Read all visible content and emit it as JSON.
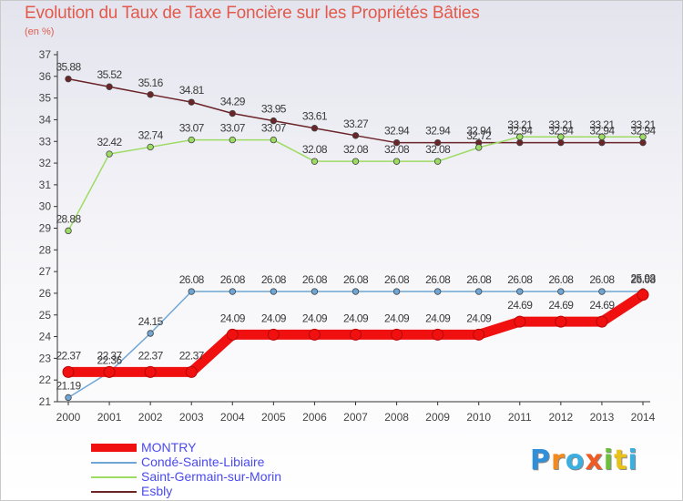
{
  "chart_data": {
    "type": "line",
    "title": "Evolution du Taux de Taxe Foncière sur les Propriétés Bâties",
    "unit_label": "(en %)",
    "xlabel": "",
    "ylabel": "",
    "ylim": [
      21,
      37
    ],
    "y_ticks": [
      21,
      22,
      23,
      24,
      25,
      26,
      27,
      28,
      29,
      30,
      31,
      32,
      33,
      34,
      35,
      36,
      37
    ],
    "x": [
      "2000",
      "2001",
      "2002",
      "2003",
      "2004",
      "2005",
      "2006",
      "2007",
      "2008",
      "2009",
      "2010",
      "2011",
      "2012",
      "2013",
      "2014"
    ],
    "grid": false,
    "series": [
      {
        "name": "Esbly",
        "color": "#6b2428",
        "values": [
          35.88,
          35.52,
          35.16,
          34.81,
          34.29,
          33.95,
          33.61,
          33.27,
          32.94,
          32.94,
          32.94,
          32.94,
          32.94,
          32.94,
          32.94
        ],
        "labels": [
          "35.88",
          "35.52",
          "35.16",
          "34.81",
          "34.29",
          "33.95",
          "33.61",
          "33.27",
          "32.94",
          "32.94",
          "32.94",
          "32.94",
          "32.94",
          "32.94",
          "32.94"
        ]
      },
      {
        "name": "Saint-Germain-sur-Morin",
        "color": "#9ddc62",
        "values": [
          28.88,
          32.42,
          32.74,
          33.07,
          33.07,
          33.07,
          32.08,
          32.08,
          32.08,
          32.08,
          32.72,
          33.21,
          33.21,
          33.21,
          33.21
        ],
        "labels": [
          "28.88",
          "32.42",
          "32.74",
          "33.07",
          "33.07",
          "33.07",
          "32.08",
          "32.08",
          "32.08",
          "32.08",
          "32.72",
          "33.21",
          "33.21",
          "33.21",
          "33.21"
        ]
      },
      {
        "name": "Condé-Sainte-Libiaire",
        "color": "#6fa6d6",
        "values": [
          21.19,
          22.36,
          24.15,
          26.08,
          26.08,
          26.08,
          26.08,
          26.08,
          26.08,
          26.08,
          26.08,
          26.08,
          26.08,
          26.08,
          26.08
        ],
        "labels": [
          "21.19",
          "22.36",
          "24.15",
          "26.08",
          "26.08",
          "26.08",
          "26.08",
          "26.08",
          "26.08",
          "26.08",
          "26.08",
          "26.08",
          "26.08",
          "26.08",
          "26.08"
        ]
      },
      {
        "name": "MONTRY",
        "color": "#f01010",
        "values": [
          22.37,
          22.37,
          22.37,
          22.37,
          24.09,
          24.09,
          24.09,
          24.09,
          24.09,
          24.09,
          24.09,
          24.69,
          24.69,
          24.69,
          25.93
        ],
        "labels": [
          "22.37",
          "22.37",
          "22.37",
          "22.37",
          "24.09",
          "24.09",
          "24.09",
          "24.09",
          "24.09",
          "24.09",
          "24.09",
          "24.69",
          "24.69",
          "24.69",
          "25.93"
        ]
      }
    ]
  },
  "legend": [
    {
      "name": "MONTRY",
      "color": "#f01010",
      "label_color": "#4a4af0"
    },
    {
      "name": "Condé-Sainte-Libiaire",
      "color": "#6fa6d6",
      "label_color": "#4a4af0"
    },
    {
      "name": "Saint-Germain-sur-Morin",
      "color": "#9ddc62",
      "label_color": "#4a4af0"
    },
    {
      "name": "Esbly",
      "color": "#6b2428",
      "label_color": "#4a4af0"
    }
  ],
  "logo": {
    "text": "Proxiti",
    "letter_colors": [
      "#2f8fd8",
      "#f28a1e",
      "#3bb0e0",
      "#f05a24",
      "#6bbf3a",
      "#e8c21a",
      "#3bb0e0"
    ]
  },
  "colors": {
    "title": "#e25a4c",
    "axis": "#333333",
    "label": "#444444"
  }
}
